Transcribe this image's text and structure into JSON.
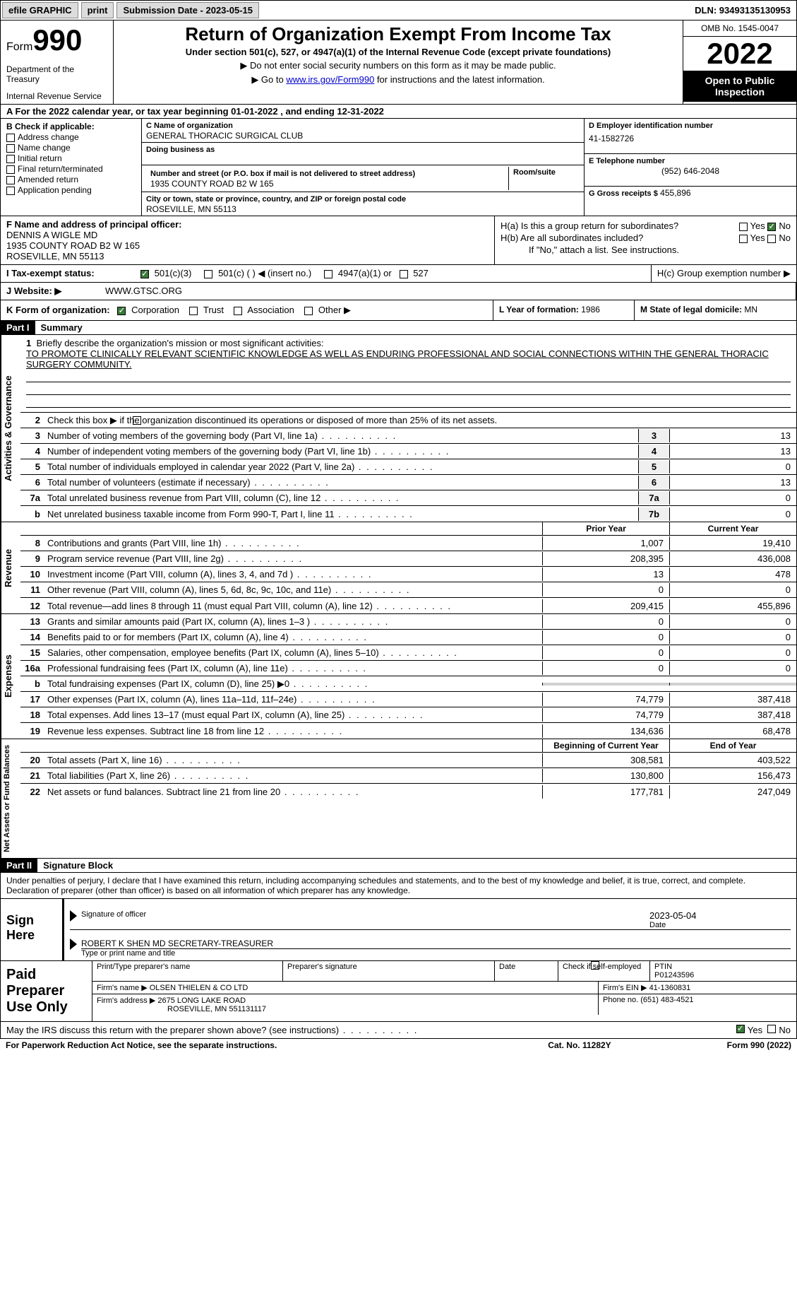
{
  "topbar": {
    "efile": "efile GRAPHIC",
    "print": "print",
    "submission_label": "Submission Date - 2023-05-15",
    "dln": "DLN: 93493135130953"
  },
  "header": {
    "form_word": "Form",
    "form_number": "990",
    "title": "Return of Organization Exempt From Income Tax",
    "subtitle": "Under section 501(c), 527, or 4947(a)(1) of the Internal Revenue Code (except private foundations)",
    "note1": "Do not enter social security numbers on this form as it may be made public.",
    "note2_prefix": "Go to ",
    "note2_link": "www.irs.gov/Form990",
    "note2_suffix": " for instructions and the latest information.",
    "dept": "Department of the Treasury",
    "irs": "Internal Revenue Service",
    "omb": "OMB No. 1545-0047",
    "year": "2022",
    "inspection": "Open to Public Inspection"
  },
  "row_a": "A For the 2022 calendar year, or tax year beginning 01-01-2022    , and ending 12-31-2022",
  "section_b": {
    "header": "B Check if applicable:",
    "items": [
      "Address change",
      "Name change",
      "Initial return",
      "Final return/terminated",
      "Amended return",
      "Application pending"
    ]
  },
  "section_c": {
    "name_label": "C Name of organization",
    "name": "GENERAL THORACIC SURGICAL CLUB",
    "dba_label": "Doing business as",
    "dba": "",
    "street_label": "Number and street (or P.O. box if mail is not delivered to street address)",
    "street": "1935 COUNTY ROAD B2 W 165",
    "room_label": "Room/suite",
    "room": "",
    "city_label": "City or town, state or province, country, and ZIP or foreign postal code",
    "city": "ROSEVILLE, MN  55113"
  },
  "section_d": {
    "ein_label": "D Employer identification number",
    "ein": "41-1582726",
    "phone_label": "E Telephone number",
    "phone": "(952) 646-2048",
    "gross_label": "G Gross receipts $",
    "gross": "455,896"
  },
  "section_f": {
    "label": "F  Name and address of principal officer:",
    "name": "DENNIS A WIGLE MD",
    "street": "1935 COUNTY ROAD B2 W 165",
    "city": "ROSEVILLE, MN  55113"
  },
  "section_h": {
    "ha_label": "H(a)  Is this a group return for subordinates?",
    "hb_label": "H(b)  Are all subordinates included?",
    "hb_note": "If \"No,\" attach a list. See instructions.",
    "hc_label": "H(c)  Group exemption number ▶",
    "yes": "Yes",
    "no": "No"
  },
  "tax_status": {
    "label": "I    Tax-exempt status:",
    "opt1": "501(c)(3)",
    "opt2": "501(c) (  ) ◀ (insert no.)",
    "opt3": "4947(a)(1) or",
    "opt4": "527"
  },
  "website": {
    "label": "J   Website: ▶",
    "value": "WWW.GTSC.ORG"
  },
  "k_form": {
    "label": "K Form of organization:",
    "opts": [
      "Corporation",
      "Trust",
      "Association",
      "Other ▶"
    ],
    "l_label": "L Year of formation: ",
    "l_val": "1986",
    "m_label": "M State of legal domicile: ",
    "m_val": "MN"
  },
  "part1": {
    "label": "Part I",
    "title": "Summary"
  },
  "mission": {
    "num": "1",
    "label": "Briefly describe the organization's mission or most significant activities:",
    "text": "TO PROMOTE CLINICALLY RELEVANT SCIENTIFIC KNOWLEDGE AS WELL AS ENDURING PROFESSIONAL AND SOCIAL CONNECTIONS WITHIN THE GENERAL THORACIC SURGERY COMMUNITY."
  },
  "governance": {
    "side": "Activities & Governance",
    "line2": "Check this box ▶       if the organization discontinued its operations or disposed of more than 25% of its net assets.",
    "lines": [
      {
        "n": "3",
        "t": "Number of voting members of the governing body (Part VI, line 1a)",
        "box": "3",
        "v": "13"
      },
      {
        "n": "4",
        "t": "Number of independent voting members of the governing body (Part VI, line 1b)",
        "box": "4",
        "v": "13"
      },
      {
        "n": "5",
        "t": "Total number of individuals employed in calendar year 2022 (Part V, line 2a)",
        "box": "5",
        "v": "0"
      },
      {
        "n": "6",
        "t": "Total number of volunteers (estimate if necessary)",
        "box": "6",
        "v": "13"
      },
      {
        "n": "7a",
        "t": "Total unrelated business revenue from Part VIII, column (C), line 12",
        "box": "7a",
        "v": "0"
      },
      {
        "n": "b",
        "t": "Net unrelated business taxable income from Form 990-T, Part I, line 11",
        "box": "7b",
        "v": "0"
      }
    ]
  },
  "col_headers": {
    "prior": "Prior Year",
    "current": "Current Year",
    "boy": "Beginning of Current Year",
    "eoy": "End of Year"
  },
  "revenue": {
    "side": "Revenue",
    "lines": [
      {
        "n": "8",
        "t": "Contributions and grants (Part VIII, line 1h)",
        "p": "1,007",
        "c": "19,410"
      },
      {
        "n": "9",
        "t": "Program service revenue (Part VIII, line 2g)",
        "p": "208,395",
        "c": "436,008"
      },
      {
        "n": "10",
        "t": "Investment income (Part VIII, column (A), lines 3, 4, and 7d )",
        "p": "13",
        "c": "478"
      },
      {
        "n": "11",
        "t": "Other revenue (Part VIII, column (A), lines 5, 6d, 8c, 9c, 10c, and 11e)",
        "p": "0",
        "c": "0"
      },
      {
        "n": "12",
        "t": "Total revenue—add lines 8 through 11 (must equal Part VIII, column (A), line 12)",
        "p": "209,415",
        "c": "455,896"
      }
    ]
  },
  "expenses": {
    "side": "Expenses",
    "lines": [
      {
        "n": "13",
        "t": "Grants and similar amounts paid (Part IX, column (A), lines 1–3 )",
        "p": "0",
        "c": "0"
      },
      {
        "n": "14",
        "t": "Benefits paid to or for members (Part IX, column (A), line 4)",
        "p": "0",
        "c": "0"
      },
      {
        "n": "15",
        "t": "Salaries, other compensation, employee benefits (Part IX, column (A), lines 5–10)",
        "p": "0",
        "c": "0"
      },
      {
        "n": "16a",
        "t": "Professional fundraising fees (Part IX, column (A), line 11e)",
        "p": "0",
        "c": "0"
      },
      {
        "n": "b",
        "t": "Total fundraising expenses (Part IX, column (D), line 25) ▶0",
        "p": "",
        "c": "",
        "gray": true
      },
      {
        "n": "17",
        "t": "Other expenses (Part IX, column (A), lines 11a–11d, 11f–24e)",
        "p": "74,779",
        "c": "387,418"
      },
      {
        "n": "18",
        "t": "Total expenses. Add lines 13–17 (must equal Part IX, column (A), line 25)",
        "p": "74,779",
        "c": "387,418"
      },
      {
        "n": "19",
        "t": "Revenue less expenses. Subtract line 18 from line 12",
        "p": "134,636",
        "c": "68,478"
      }
    ]
  },
  "netassets": {
    "side": "Net Assets or Fund Balances",
    "lines": [
      {
        "n": "20",
        "t": "Total assets (Part X, line 16)",
        "p": "308,581",
        "c": "403,522"
      },
      {
        "n": "21",
        "t": "Total liabilities (Part X, line 26)",
        "p": "130,800",
        "c": "156,473"
      },
      {
        "n": "22",
        "t": "Net assets or fund balances. Subtract line 21 from line 20",
        "p": "177,781",
        "c": "247,049"
      }
    ]
  },
  "part2": {
    "label": "Part II",
    "title": "Signature Block"
  },
  "perjury": "Under penalties of perjury, I declare that I have examined this return, including accompanying schedules and statements, and to the best of my knowledge and belief, it is true, correct, and complete. Declaration of preparer (other than officer) is based on all information of which preparer has any knowledge.",
  "sign": {
    "here": "Sign Here",
    "sig_label": "Signature of officer",
    "date": "2023-05-04",
    "date_label": "Date",
    "name": "ROBERT K SHEN MD  SECRETARY-TREASURER",
    "name_label": "Type or print name and title"
  },
  "preparer": {
    "label": "Paid Preparer Use Only",
    "r1": {
      "c1": "Print/Type preparer's name",
      "c2": "Preparer's signature",
      "c3": "Date",
      "c4_label": "Check       if self-employed",
      "c5_label": "PTIN",
      "c5": "P01243596"
    },
    "r2": {
      "label": "Firm's name    ▶",
      "val": "OLSEN THIELEN & CO LTD",
      "ein_label": "Firm's EIN ▶",
      "ein": "41-1360831"
    },
    "r3": {
      "label": "Firm's address ▶",
      "val1": "2675 LONG LAKE ROAD",
      "val2": "ROSEVILLE, MN  551131117",
      "ph_label": "Phone no.",
      "ph": "(651) 483-4521"
    }
  },
  "discuss": "May the IRS discuss this return with the preparer shown above? (see instructions)",
  "footer": {
    "left": "For Paperwork Reduction Act Notice, see the separate instructions.",
    "mid": "Cat. No. 11282Y",
    "right": "Form 990 (2022)"
  }
}
